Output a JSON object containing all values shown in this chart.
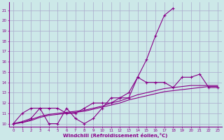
{
  "background_color": "#cce8e8",
  "grid_color": "#aaaacc",
  "line_color": "#880088",
  "xlabel": "Windchill (Refroidissement éolien,°C)",
  "xlim": [
    -0.5,
    23.5
  ],
  "ylim": [
    9.7,
    21.8
  ],
  "xticks": [
    0,
    1,
    2,
    3,
    4,
    5,
    6,
    7,
    8,
    9,
    10,
    11,
    12,
    13,
    14,
    15,
    16,
    17,
    18,
    19,
    20,
    21,
    22,
    23
  ],
  "yticks": [
    10,
    11,
    12,
    13,
    14,
    15,
    16,
    17,
    18,
    19,
    20,
    21
  ],
  "lines": [
    {
      "x": [
        0,
        1,
        2,
        3,
        4,
        5,
        6,
        7,
        8,
        9,
        10,
        11,
        12,
        13,
        14,
        15,
        16,
        17,
        18
      ],
      "y": [
        10.0,
        11.0,
        11.5,
        11.5,
        10.0,
        10.0,
        11.5,
        10.5,
        10.0,
        10.5,
        11.5,
        12.5,
        12.5,
        12.5,
        14.5,
        16.2,
        18.5,
        20.5,
        21.2
      ],
      "marker": "+"
    },
    {
      "x": [
        0,
        1,
        2,
        3,
        4,
        5,
        6,
        7,
        8,
        9,
        10,
        11,
        12,
        13,
        14,
        15,
        16,
        17,
        18,
        19,
        20,
        21,
        22,
        23
      ],
      "y": [
        10.0,
        10.2,
        10.5,
        11.5,
        11.5,
        11.5,
        11.0,
        11.0,
        11.5,
        12.0,
        12.0,
        12.0,
        12.5,
        13.0,
        14.5,
        14.0,
        14.0,
        14.0,
        13.5,
        14.5,
        14.5,
        14.8,
        13.5,
        13.5
      ],
      "marker": "+"
    },
    {
      "x": [
        0,
        1,
        2,
        3,
        4,
        5,
        6,
        7,
        8,
        9,
        10,
        11,
        12,
        13,
        14,
        15,
        16,
        17,
        18,
        19,
        20,
        21,
        22,
        23
      ],
      "y": [
        10.0,
        10.1,
        10.3,
        10.6,
        10.8,
        10.9,
        11.0,
        11.1,
        11.2,
        11.4,
        11.6,
        11.8,
        12.0,
        12.3,
        12.5,
        12.7,
        12.9,
        13.1,
        13.2,
        13.3,
        13.4,
        13.5,
        13.6,
        13.6
      ],
      "marker": null
    },
    {
      "x": [
        0,
        1,
        2,
        3,
        4,
        5,
        6,
        7,
        8,
        9,
        10,
        11,
        12,
        13,
        14,
        15,
        16,
        17,
        18,
        19,
        20,
        21,
        22,
        23
      ],
      "y": [
        10.0,
        10.1,
        10.4,
        10.7,
        10.9,
        11.0,
        11.1,
        11.2,
        11.3,
        11.5,
        11.7,
        12.0,
        12.2,
        12.5,
        12.8,
        13.0,
        13.2,
        13.4,
        13.5,
        13.6,
        13.7,
        13.7,
        13.7,
        13.7
      ],
      "marker": null
    }
  ]
}
